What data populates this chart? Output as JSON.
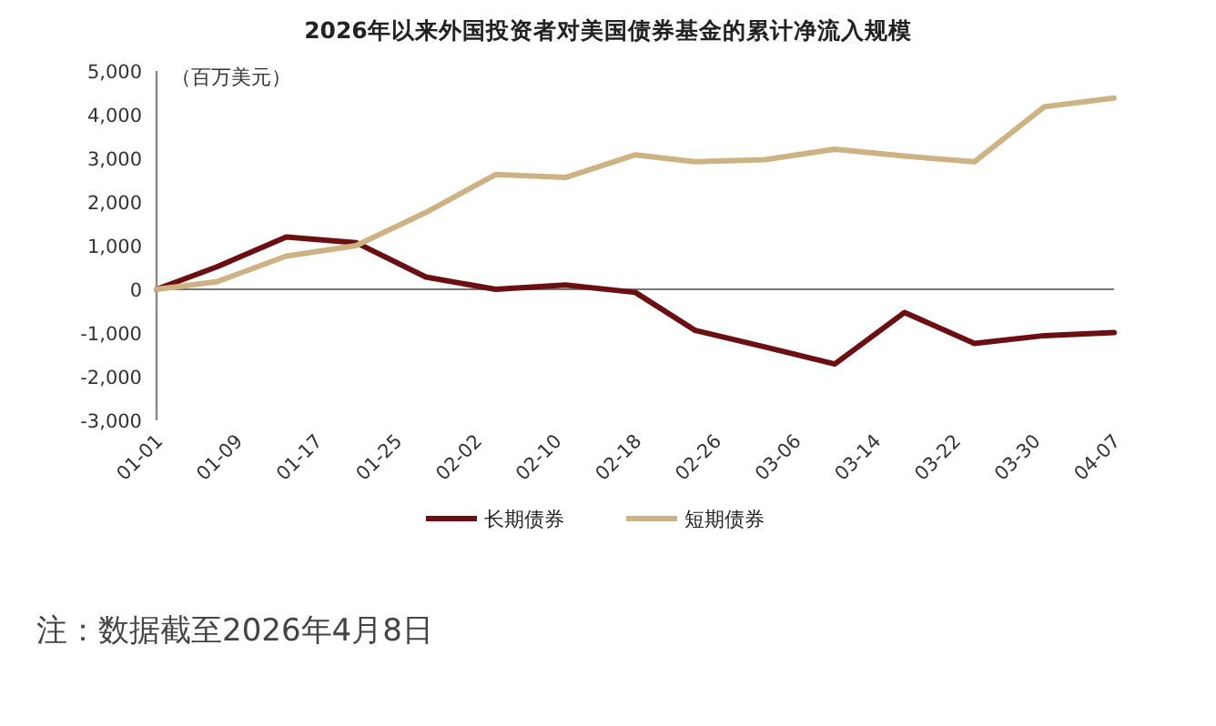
{
  "chart_data": {
    "type": "line",
    "title": "2026年以来外国投资者对美国债券基金的累计净流入规模",
    "ylabel": "（百万美元）",
    "x": [
      "--01-01",
      "--01-07",
      "--01-14",
      "--01-21",
      "--01-28",
      "--02-04",
      "--02-11",
      "--02-18",
      "--02-24",
      "--03-03",
      "--03-10",
      "--03-17",
      "--03-24",
      "--03-31",
      "--04-07"
    ],
    "series": [
      {
        "name": "长期债券",
        "color": "#6b0f12",
        "values": [
          0,
          510,
          1200,
          1070,
          280,
          0,
          100,
          -70,
          -940,
          -1320,
          -1710,
          -530,
          -1240,
          -1060,
          -990
        ]
      },
      {
        "name": "短期债券",
        "color": "#cdb283",
        "values": [
          0,
          170,
          760,
          1000,
          1760,
          2630,
          2560,
          3080,
          2920,
          2970,
          3210,
          3050,
          2920,
          4180,
          4380
        ]
      }
    ],
    "xlim": [
      "--01-01",
      "--04-07"
    ],
    "xticks": [
      {
        "value": "--01-01",
        "label": "01-01"
      },
      {
        "value": "--01-09",
        "label": "01-09"
      },
      {
        "value": "--01-17",
        "label": "01-17"
      },
      {
        "value": "--01-25",
        "label": "01-25"
      },
      {
        "value": "--02-02",
        "label": "02-02"
      },
      {
        "value": "--02-10",
        "label": "02-10"
      },
      {
        "value": "--02-18",
        "label": "02-18"
      },
      {
        "value": "--02-26",
        "label": "02-26"
      },
      {
        "value": "--03-06",
        "label": "03-06"
      },
      {
        "value": "--03-14",
        "label": "03-14"
      },
      {
        "value": "--03-22",
        "label": "03-22"
      },
      {
        "value": "--03-30",
        "label": "03-30"
      },
      {
        "value": "--04-07",
        "label": "04-07"
      }
    ],
    "ylim": [
      -3000,
      5000
    ],
    "yticks": [
      {
        "value": -3000,
        "label": "-3,000"
      },
      {
        "value": -2000,
        "label": "-2,000"
      },
      {
        "value": -1000,
        "label": "-1,000"
      },
      {
        "value": 0,
        "label": "0"
      },
      {
        "value": 1000,
        "label": "1,000"
      },
      {
        "value": 2000,
        "label": "2,000"
      },
      {
        "value": 3000,
        "label": "3,000"
      },
      {
        "value": 4000,
        "label": "4,000"
      },
      {
        "value": 5000,
        "label": "5,000"
      }
    ],
    "ref_lines": [
      {
        "axis": "y",
        "value": 0,
        "color": "#777777",
        "line_style": "solid"
      }
    ],
    "legend": "bottom",
    "marker": "none",
    "line_style": "solid",
    "annotations": [
      "注：数据截至2026年4月8日"
    ]
  }
}
